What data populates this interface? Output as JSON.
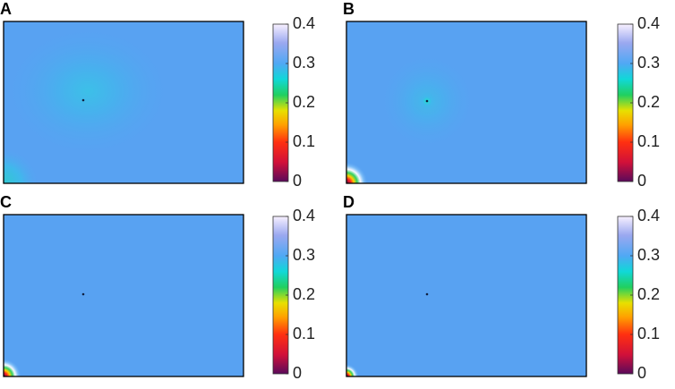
{
  "chart_data": [
    {
      "type": "heatmap",
      "title": "A",
      "clim": [
        0,
        0.4
      ],
      "cticks": [
        0,
        0.1,
        0.2,
        0.3,
        0.4
      ]
    },
    {
      "type": "heatmap",
      "title": "B",
      "clim": [
        0,
        0.4
      ],
      "cticks": [
        0,
        0.1,
        0.2,
        0.3,
        0.4
      ]
    },
    {
      "type": "heatmap",
      "title": "C",
      "clim": [
        0,
        0.4
      ],
      "cticks": [
        0,
        0.1,
        0.2,
        0.3,
        0.4
      ]
    },
    {
      "type": "heatmap",
      "title": "D",
      "clim": [
        0,
        0.4
      ],
      "cticks": [
        0,
        0.1,
        0.2,
        0.3,
        0.4
      ]
    }
  ]
}
